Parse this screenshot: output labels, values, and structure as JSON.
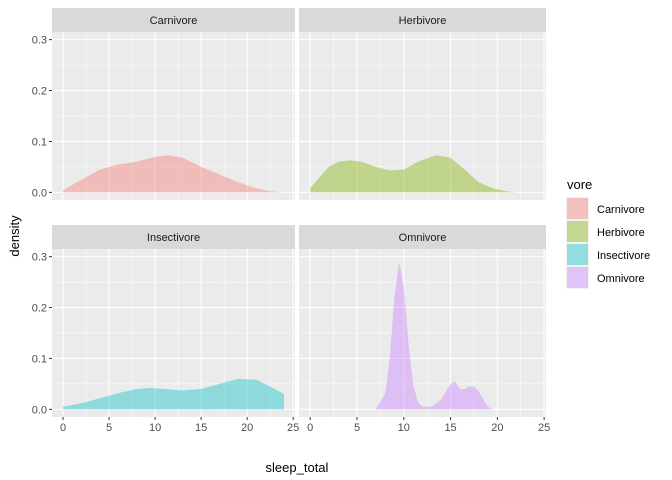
{
  "chart_data": {
    "type": "area",
    "subtype": "faceted-density",
    "xlabel": "sleep_total",
    "ylabel": "density",
    "xlim": [
      -1.2,
      25.2
    ],
    "ylim": [
      -0.015,
      0.315
    ],
    "x_ticks": [
      0,
      5,
      10,
      15,
      20,
      25
    ],
    "y_ticks": [
      0.0,
      0.1,
      0.2,
      0.3
    ],
    "y_tick_labels": [
      "0.0",
      "0.1",
      "0.2",
      "0.3"
    ],
    "grid": true,
    "legend": {
      "title": "vore",
      "placement": "right",
      "entries": [
        "Carnivore",
        "Herbivore",
        "Insectivore",
        "Omnivore"
      ]
    },
    "series": [
      {
        "name": "Carnivore",
        "color": "#F8766D",
        "x": [
          0,
          2,
          4,
          6,
          8,
          10,
          11.5,
          13,
          15,
          17,
          19,
          21,
          22.5,
          24
        ],
        "y": [
          0.004,
          0.025,
          0.045,
          0.055,
          0.06,
          0.07,
          0.073,
          0.068,
          0.05,
          0.035,
          0.02,
          0.008,
          0.002,
          0.0
        ]
      },
      {
        "name": "Herbivore",
        "color": "#7CAE00",
        "x": [
          0,
          1,
          2,
          3,
          4.2,
          5.5,
          7,
          8.5,
          10,
          11.5,
          13.5,
          15,
          16.5,
          18,
          19.5,
          21,
          22
        ],
        "y": [
          0.008,
          0.03,
          0.05,
          0.06,
          0.063,
          0.06,
          0.05,
          0.043,
          0.045,
          0.06,
          0.073,
          0.068,
          0.045,
          0.02,
          0.008,
          0.002,
          0.0
        ]
      },
      {
        "name": "Insectivore",
        "color": "#00BFC4",
        "x": [
          0,
          2,
          4,
          6,
          8,
          9.5,
          11,
          13,
          15,
          17,
          19,
          21,
          22.5,
          24
        ],
        "y": [
          0.005,
          0.012,
          0.022,
          0.032,
          0.04,
          0.042,
          0.04,
          0.037,
          0.04,
          0.05,
          0.06,
          0.058,
          0.045,
          0.03
        ]
      },
      {
        "name": "Omnivore",
        "color": "#C77CFF",
        "x": [
          7,
          8,
          8.5,
          9,
          9.5,
          10,
          10.5,
          11,
          11.5,
          12,
          13,
          14,
          15,
          15.5,
          16,
          16.5,
          17,
          17.5,
          18,
          19,
          19.5
        ],
        "y": [
          0.001,
          0.03,
          0.1,
          0.22,
          0.29,
          0.24,
          0.13,
          0.05,
          0.015,
          0.005,
          0.005,
          0.02,
          0.05,
          0.055,
          0.04,
          0.04,
          0.045,
          0.045,
          0.035,
          0.005,
          0.0
        ]
      }
    ]
  }
}
